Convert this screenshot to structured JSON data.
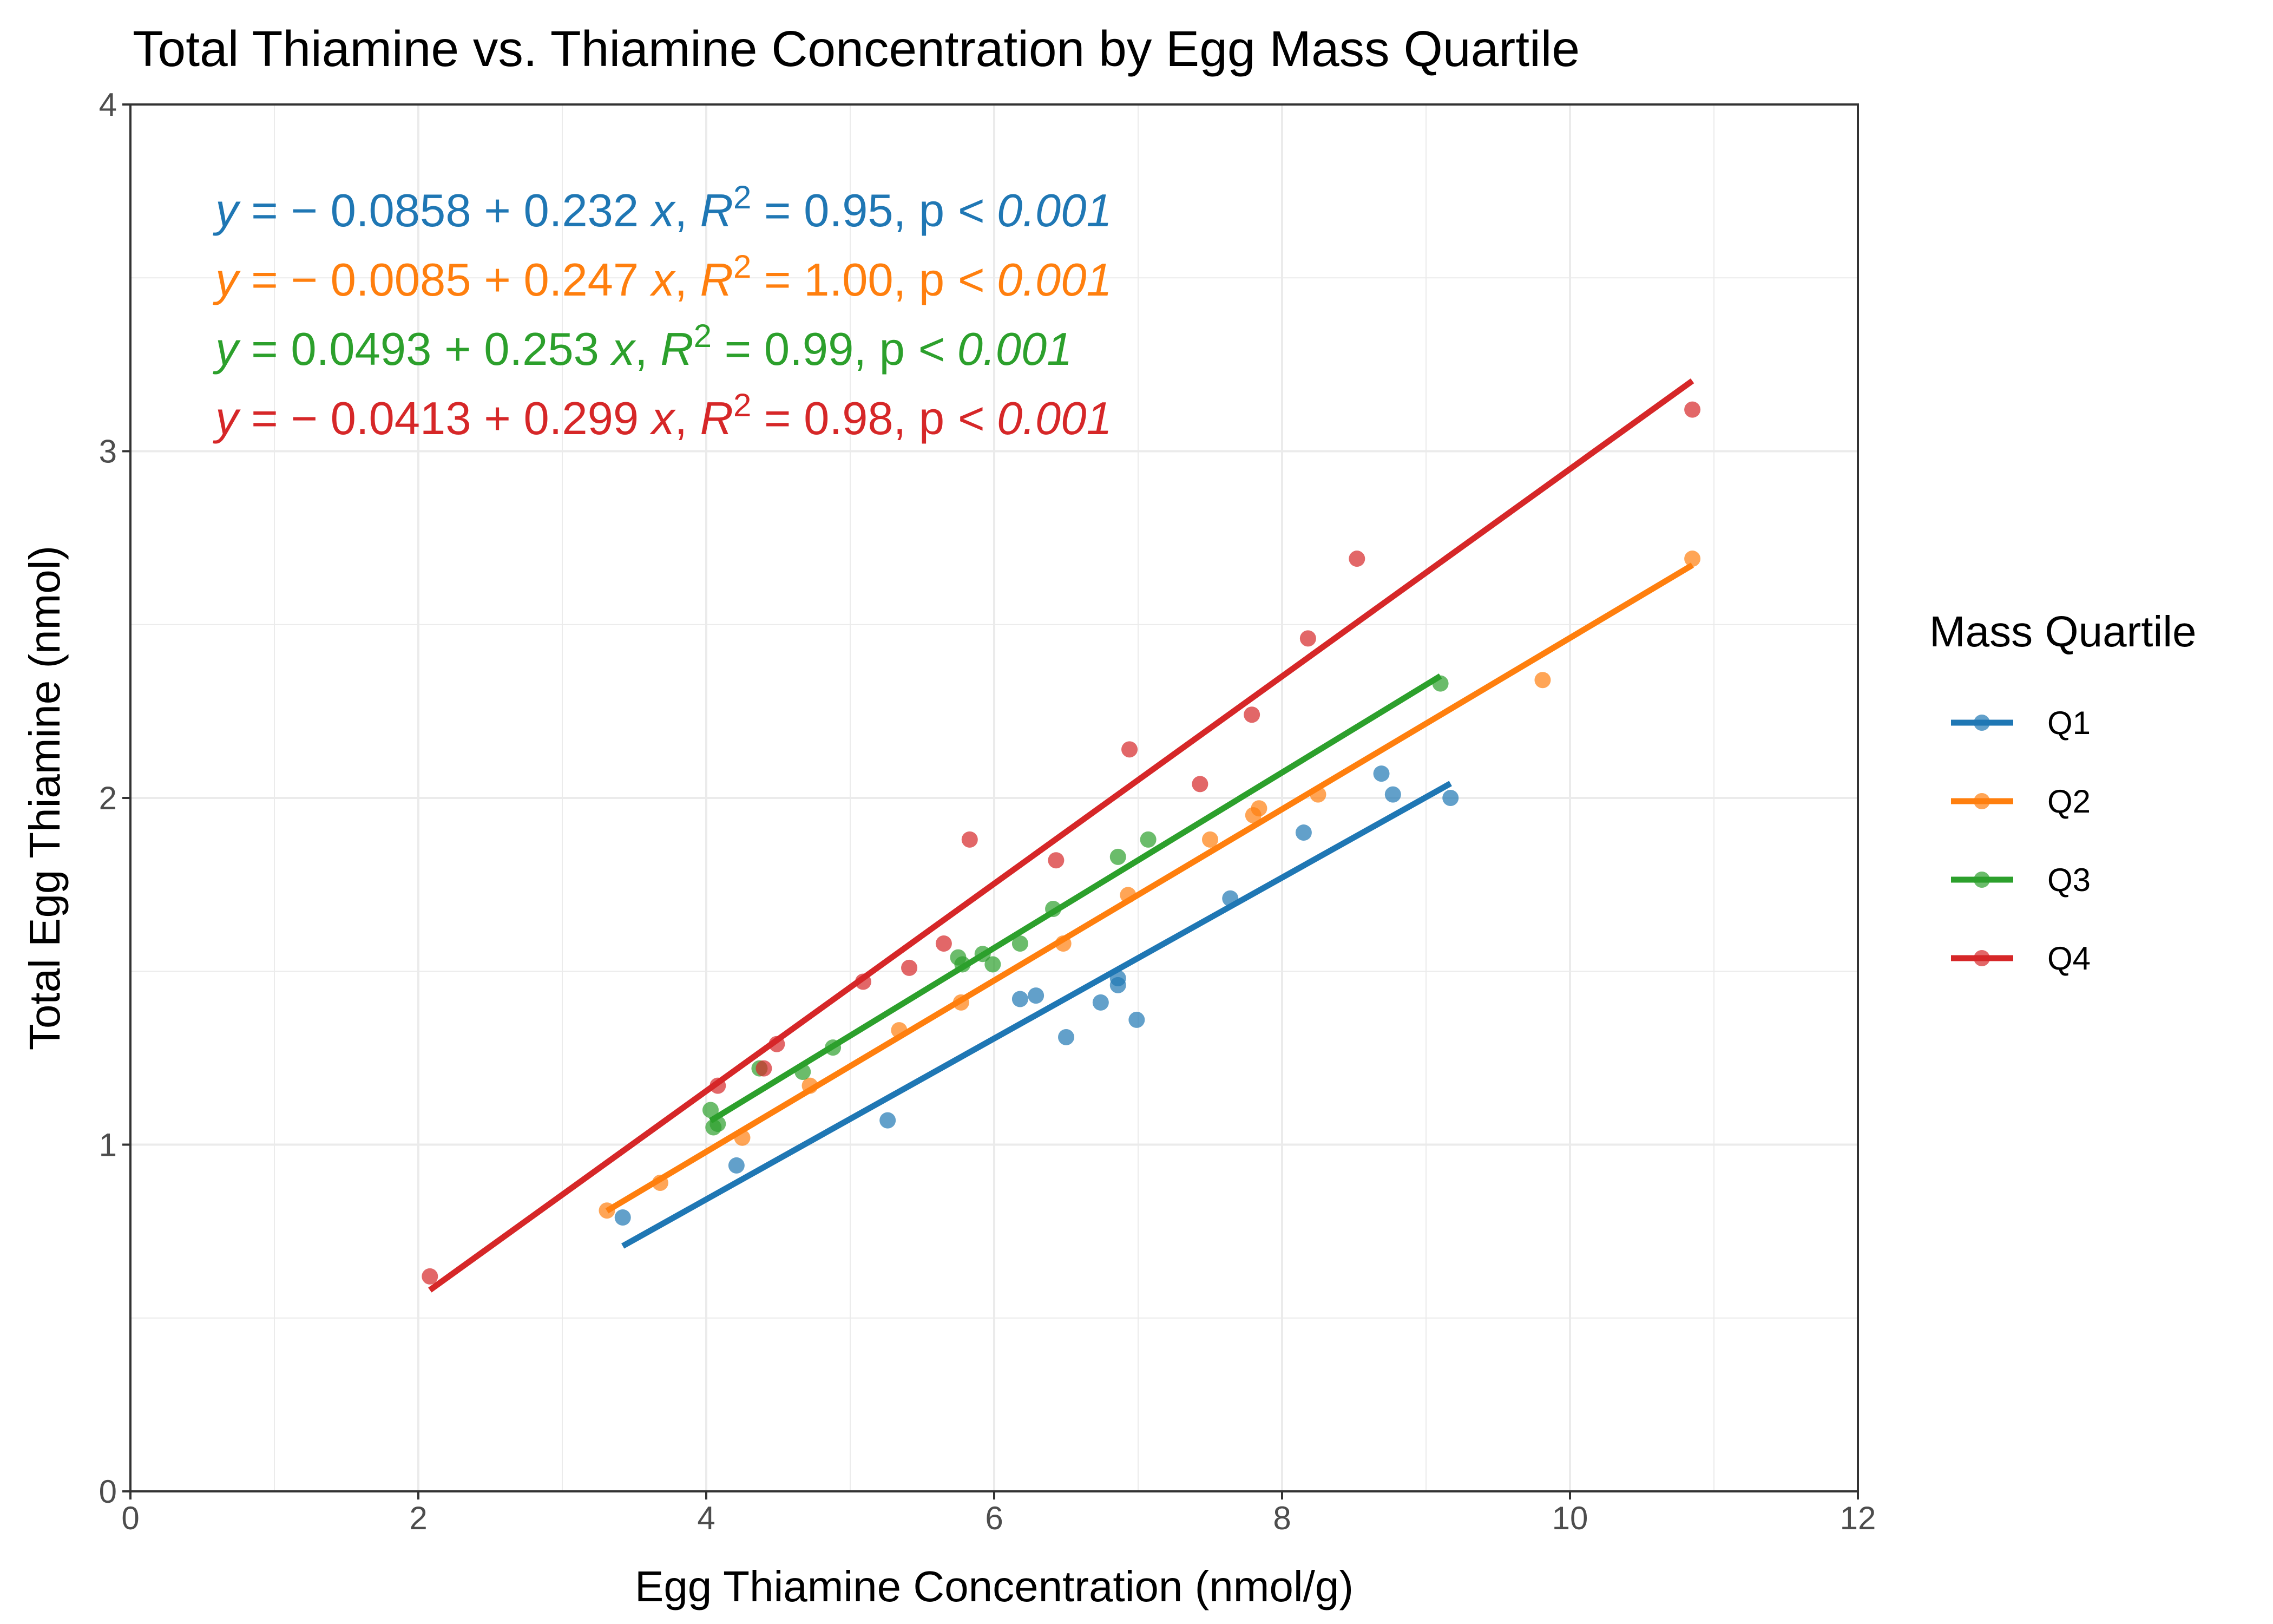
{
  "chart_data": {
    "type": "scatter",
    "title": "Total Thiamine vs. Thiamine Concentration by Egg Mass Quartile",
    "xlabel": "Egg Thiamine Concentration (nmol/g)",
    "ylabel": "Total Egg Thiamine (nmol)",
    "xlim": [
      0,
      12
    ],
    "ylim": [
      0,
      4
    ],
    "x_ticks": [
      "0",
      "2",
      "4",
      "6",
      "8",
      "10",
      "12"
    ],
    "y_ticks": [
      "0",
      "1",
      "2",
      "3",
      "4"
    ],
    "grid": true,
    "legend_title": "Mass Quartile",
    "legend_position": "right",
    "series": [
      {
        "name": "Q1",
        "color": "#1f77b4",
        "equation": [
          "y",
          " = − 0.0858 + 0.232 ",
          "x",
          ", ",
          "R",
          "2",
          " = 0.95, ",
          "p",
          " < 0.001"
        ],
        "fit": {
          "intercept": -0.0858,
          "slope": 0.232,
          "x_range": [
            3.42,
            9.17
          ]
        },
        "points": [
          [
            3.42,
            0.79
          ],
          [
            4.21,
            0.94
          ],
          [
            5.26,
            1.07
          ],
          [
            6.18,
            1.42
          ],
          [
            6.29,
            1.43
          ],
          [
            6.5,
            1.31
          ],
          [
            6.74,
            1.41
          ],
          [
            6.86,
            1.46
          ],
          [
            6.86,
            1.48
          ],
          [
            6.99,
            1.36
          ],
          [
            7.64,
            1.71
          ],
          [
            8.15,
            1.9
          ],
          [
            8.69,
            2.07
          ],
          [
            8.77,
            2.01
          ],
          [
            9.17,
            2.0
          ]
        ]
      },
      {
        "name": "Q2",
        "color": "#ff7f0e",
        "equation": [
          "y",
          " = − 0.0085 + 0.247 ",
          "x",
          ", ",
          "R",
          "2",
          " = 1.00, ",
          "p",
          " < 0.001"
        ],
        "fit": {
          "intercept": -0.0085,
          "slope": 0.247,
          "x_range": [
            3.31,
            10.85
          ]
        },
        "points": [
          [
            3.31,
            0.81
          ],
          [
            3.68,
            0.89
          ],
          [
            4.25,
            1.02
          ],
          [
            4.72,
            1.17
          ],
          [
            5.34,
            1.33
          ],
          [
            5.77,
            1.41
          ],
          [
            6.48,
            1.58
          ],
          [
            6.93,
            1.72
          ],
          [
            7.5,
            1.88
          ],
          [
            7.8,
            1.95
          ],
          [
            7.84,
            1.97
          ],
          [
            8.25,
            2.01
          ],
          [
            9.81,
            2.34
          ],
          [
            10.85,
            2.69
          ]
        ]
      },
      {
        "name": "Q3",
        "color": "#2ca02c",
        "equation": [
          "y",
          " = 0.0493 + 0.253 ",
          "x",
          ", ",
          "R",
          "2",
          " = 0.99, ",
          "p",
          " < 0.001"
        ],
        "fit": {
          "intercept": 0.0493,
          "slope": 0.253,
          "x_range": [
            4.03,
            9.1
          ]
        },
        "points": [
          [
            4.03,
            1.1
          ],
          [
            4.05,
            1.05
          ],
          [
            4.08,
            1.06
          ],
          [
            4.37,
            1.22
          ],
          [
            4.67,
            1.21
          ],
          [
            4.88,
            1.28
          ],
          [
            5.75,
            1.54
          ],
          [
            5.78,
            1.52
          ],
          [
            5.92,
            1.55
          ],
          [
            5.99,
            1.52
          ],
          [
            6.18,
            1.58
          ],
          [
            6.41,
            1.68
          ],
          [
            6.86,
            1.83
          ],
          [
            7.07,
            1.88
          ],
          [
            9.1,
            2.33
          ]
        ]
      },
      {
        "name": "Q4",
        "color": "#d62728",
        "equation": [
          "y",
          " = − 0.0413 + 0.299 ",
          "x",
          ", ",
          "R",
          "2",
          " = 0.98, ",
          "p",
          " < 0.001"
        ],
        "fit": {
          "intercept": -0.0413,
          "slope": 0.299,
          "x_range": [
            2.08,
            10.85
          ]
        },
        "points": [
          [
            2.08,
            0.62
          ],
          [
            4.08,
            1.17
          ],
          [
            4.4,
            1.22
          ],
          [
            4.49,
            1.29
          ],
          [
            5.09,
            1.47
          ],
          [
            5.41,
            1.51
          ],
          [
            5.65,
            1.58
          ],
          [
            5.83,
            1.88
          ],
          [
            6.43,
            1.82
          ],
          [
            6.94,
            2.14
          ],
          [
            7.43,
            2.04
          ],
          [
            7.79,
            2.24
          ],
          [
            8.18,
            2.46
          ],
          [
            8.52,
            2.69
          ],
          [
            10.85,
            3.12
          ]
        ]
      }
    ]
  }
}
